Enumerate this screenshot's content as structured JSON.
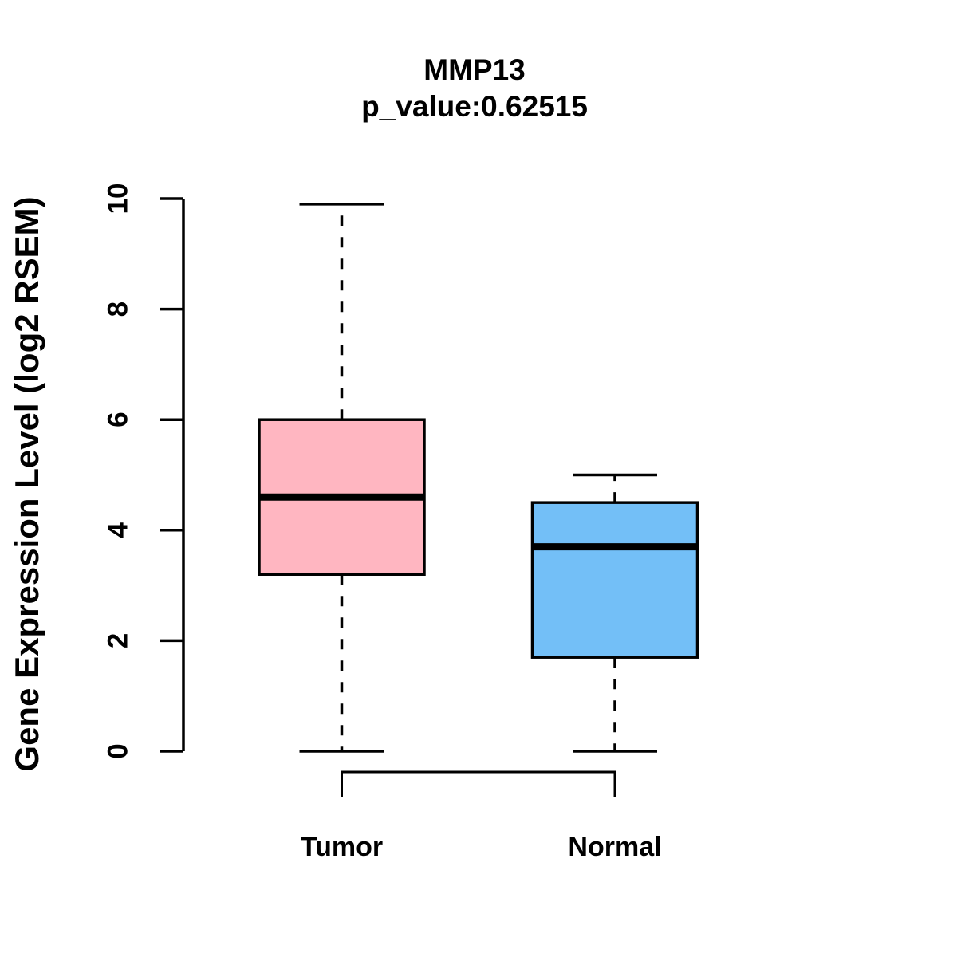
{
  "figure": {
    "gene": "MMP13",
    "title": "MMP13",
    "subtitle": "p_value:0.62515",
    "p_value": "0.62515",
    "ylabel": "Gene Expression Level (log2 RSEM)"
  },
  "chart_data": {
    "type": "boxplot",
    "title": "MMP13",
    "subtitle": "p_value:0.62515",
    "ylabel": "Gene Expression Level (log2 RSEM)",
    "xlabel": "",
    "ylim": [
      0,
      10
    ],
    "yticks": [
      "0",
      "2",
      "4",
      "6",
      "8",
      "10"
    ],
    "grid": false,
    "legend": "none",
    "categories": [
      "Tumor",
      "Normal"
    ],
    "series": [
      {
        "name": "Tumor",
        "whisker_low": 0,
        "q1": 3.2,
        "median": 4.6,
        "q3": 6.0,
        "whisker_high": 9.9,
        "fill": "#FFB6C1",
        "outline": "#000000"
      },
      {
        "name": "Normal",
        "whisker_low": 0,
        "q1": 1.7,
        "median": 3.7,
        "q3": 4.5,
        "whisker_high": 5.0,
        "fill": "#73BFF7",
        "outline": "#000000"
      }
    ]
  }
}
